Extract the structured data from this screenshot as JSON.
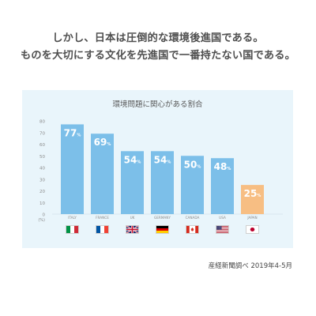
{
  "headline": {
    "line1": "しかし、日本は圧倒的な環境後進国である。",
    "line2": "ものを大切にする文化を先進国で一番持たない国である。"
  },
  "source": "産経新聞調べ 2019年4-5月",
  "colors": {
    "panel_bg": "#e9f5fb",
    "bar": "#7cbfe9",
    "bar_highlight": "#f7be83",
    "value_label": "#ffffff",
    "axis_text": "#8a8a8a"
  },
  "chart_data": {
    "type": "bar",
    "title": "環境問題に関心がある割合",
    "categories": [
      "ITALY",
      "FRANCE",
      "UK",
      "GERMANY",
      "CANADA",
      "USA",
      "JAPAN"
    ],
    "values": [
      77,
      69,
      54,
      54,
      50,
      48,
      25
    ],
    "value_unit": "%",
    "highlight": "JAPAN",
    "ylim": [
      0,
      80
    ],
    "yticks": [
      0,
      10,
      20,
      30,
      40,
      50,
      60,
      70,
      80
    ],
    "yunit": "(%)",
    "grid": false,
    "flags": [
      "italy-flag-icon",
      "france-flag-icon",
      "uk-flag-icon",
      "germany-flag-icon",
      "canada-flag-icon",
      "usa-flag-icon",
      "japan-flag-icon"
    ]
  }
}
